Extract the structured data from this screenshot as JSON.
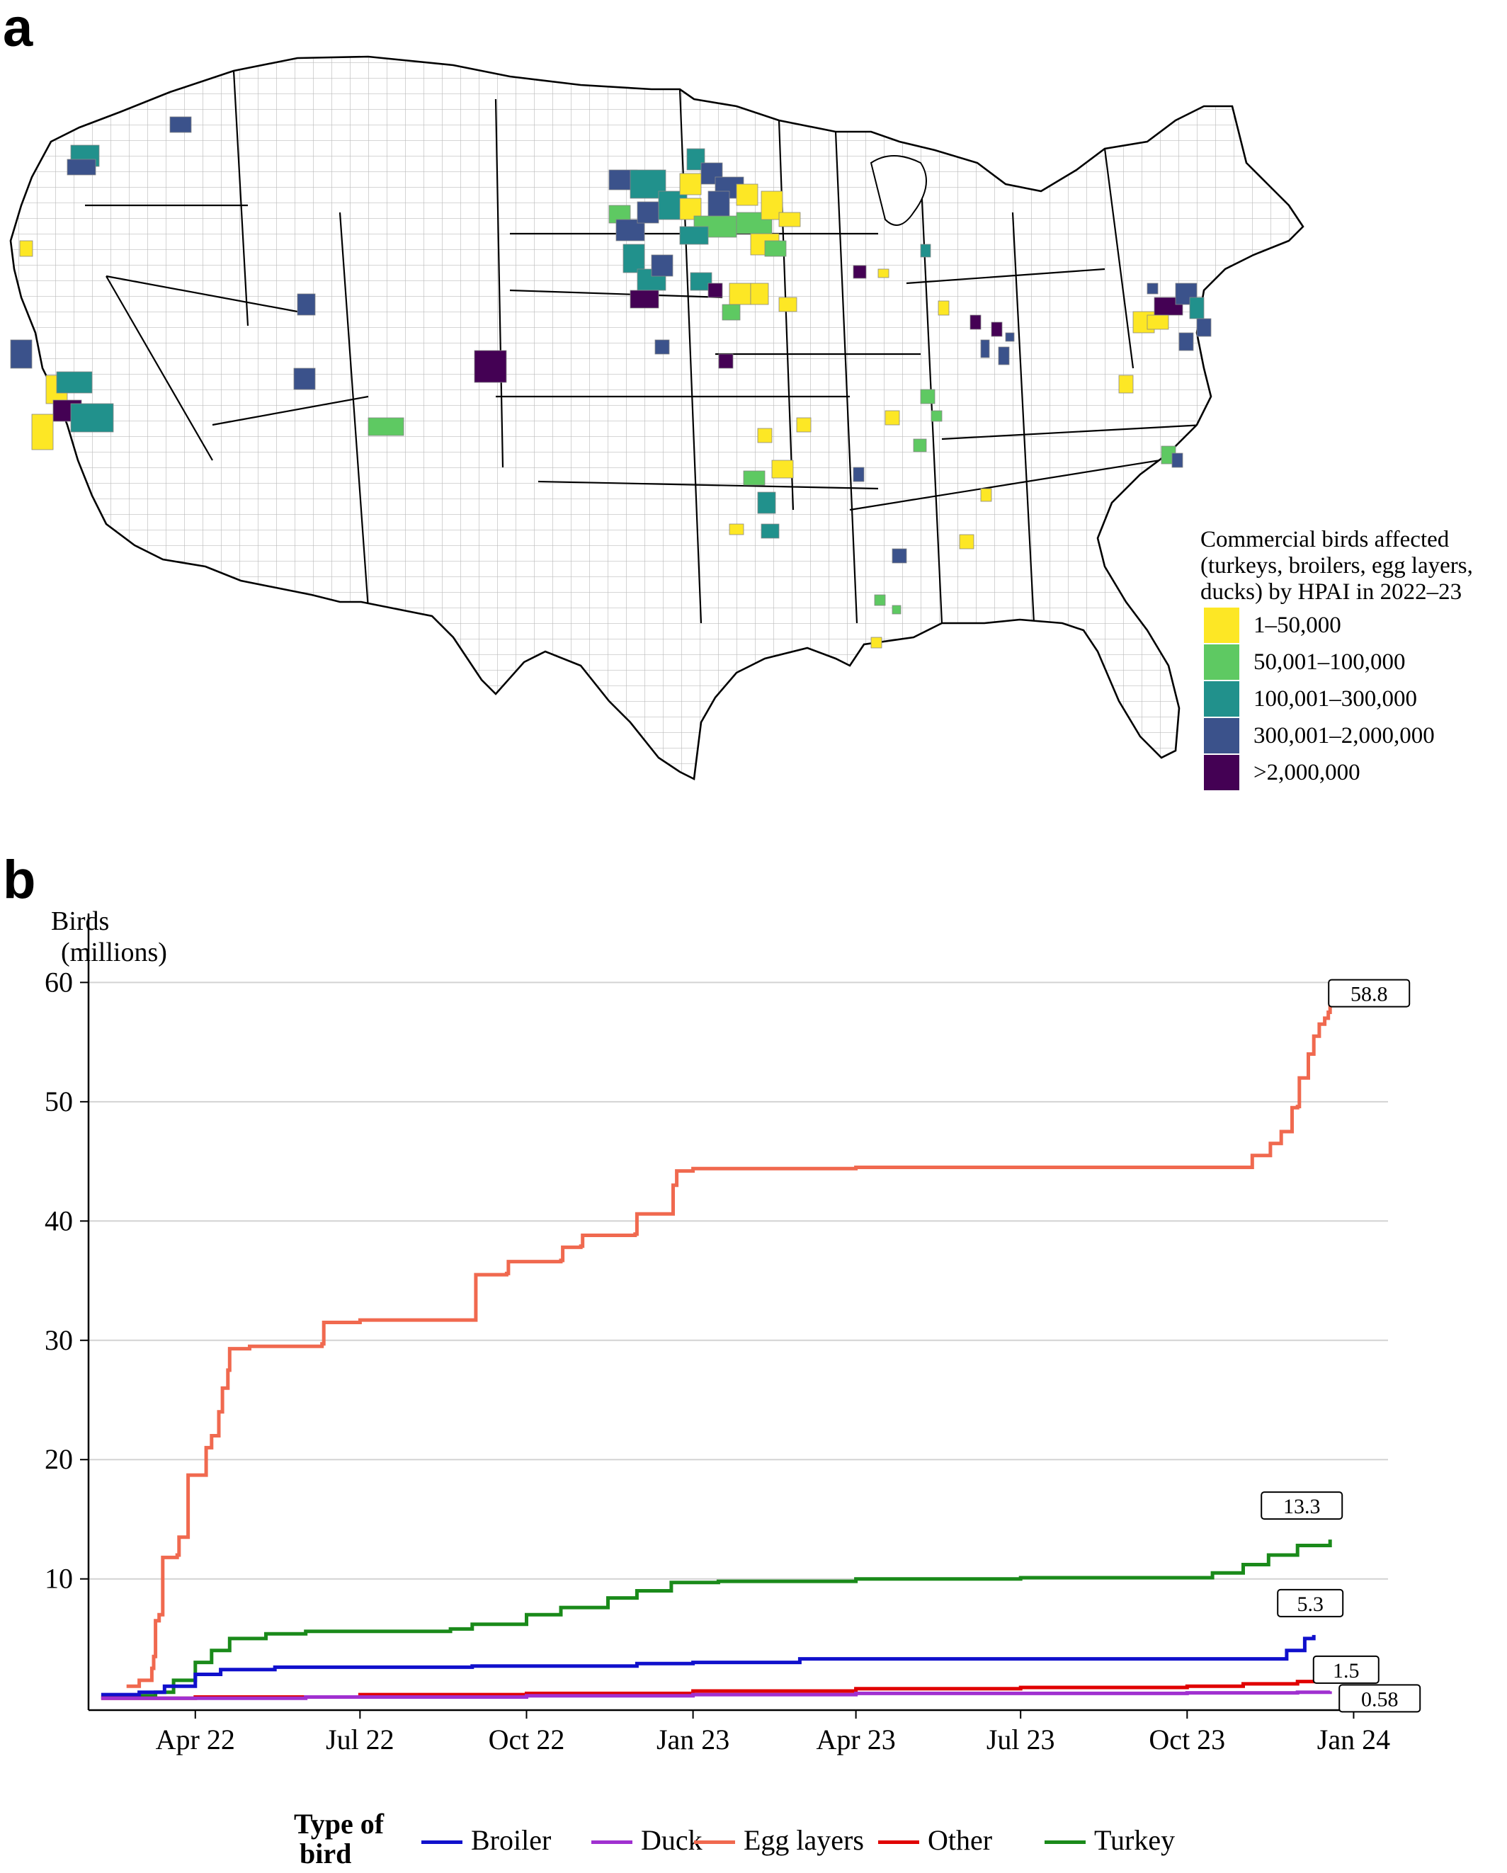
{
  "panel_labels": {
    "a": "a",
    "b": "b"
  },
  "map": {
    "legend_title": "Commercial birds affected (turkeys, broilers, egg layers, ducks) by HPAI in 2022–23",
    "legend": [
      {
        "label": "1–50,000",
        "color": "#fde725"
      },
      {
        "label": "50,001–100,000",
        "color": "#5ec962"
      },
      {
        "label": "100,001–300,000",
        "color": "#21918c"
      },
      {
        "label": "300,001–2,000,000",
        "color": "#3b528b"
      },
      {
        "label": ">2,000,000",
        "color": "#440154"
      }
    ],
    "outline_color": "#000000",
    "county_line_color": "#bdbdbd"
  },
  "chart_data": {
    "type": "line",
    "title": "",
    "ylabel_line1": "Birds",
    "ylabel_line2": "(millions)",
    "xlabel": "",
    "ylim": [
      -1,
      64
    ],
    "yticks": [
      10,
      20,
      30,
      40,
      50,
      60
    ],
    "grid": "horizontal",
    "x_range": [
      "2022-02-01",
      "2024-01-20"
    ],
    "x_ticks": [
      {
        "label": "Apr 22",
        "date": "2022-04-01"
      },
      {
        "label": "Jul 22",
        "date": "2022-07-01"
      },
      {
        "label": "Oct 22",
        "date": "2022-10-01"
      },
      {
        "label": "Jan 23",
        "date": "2023-01-01"
      },
      {
        "label": "Apr 23",
        "date": "2023-04-01"
      },
      {
        "label": "Jul 23",
        "date": "2023-07-01"
      },
      {
        "label": "Oct 23",
        "date": "2023-10-01"
      },
      {
        "label": "Jan 24",
        "date": "2024-01-01"
      }
    ],
    "legend_title": "Type of bird",
    "legend_position": "bottom",
    "series": [
      {
        "name": "Egg layers",
        "color": "#f0694f",
        "end_label": "58.8",
        "points": [
          [
            "2022-02-22",
            1.0
          ],
          [
            "2022-02-28",
            1.0
          ],
          [
            "2022-03-01",
            1.5
          ],
          [
            "2022-03-07",
            1.5
          ],
          [
            "2022-03-08",
            2.5
          ],
          [
            "2022-03-09",
            3.5
          ],
          [
            "2022-03-10",
            6.5
          ],
          [
            "2022-03-12",
            7.0
          ],
          [
            "2022-03-14",
            11.8
          ],
          [
            "2022-03-22",
            12.0
          ],
          [
            "2022-03-23",
            13.5
          ],
          [
            "2022-03-28",
            18.7
          ],
          [
            "2022-04-06",
            18.7
          ],
          [
            "2022-04-07",
            21.0
          ],
          [
            "2022-04-10",
            22.0
          ],
          [
            "2022-04-14",
            24.0
          ],
          [
            "2022-04-16",
            26.0
          ],
          [
            "2022-04-19",
            27.5
          ],
          [
            "2022-04-20",
            29.3
          ],
          [
            "2022-05-01",
            29.5
          ],
          [
            "2022-06-10",
            29.7
          ],
          [
            "2022-06-11",
            31.5
          ],
          [
            "2022-07-01",
            31.7
          ],
          [
            "2022-09-02",
            31.7
          ],
          [
            "2022-09-03",
            35.5
          ],
          [
            "2022-09-20",
            35.6
          ],
          [
            "2022-09-21",
            36.6
          ],
          [
            "2022-10-20",
            36.7
          ],
          [
            "2022-10-21",
            37.8
          ],
          [
            "2022-10-31",
            37.9
          ],
          [
            "2022-11-01",
            38.8
          ],
          [
            "2022-11-30",
            38.9
          ],
          [
            "2022-12-01",
            40.6
          ],
          [
            "2022-12-20",
            40.6
          ],
          [
            "2022-12-21",
            43.0
          ],
          [
            "2022-12-23",
            44.2
          ],
          [
            "2023-01-01",
            44.4
          ],
          [
            "2023-04-01",
            44.5
          ],
          [
            "2023-11-05",
            44.5
          ],
          [
            "2023-11-06",
            45.5
          ],
          [
            "2023-11-15",
            45.5
          ],
          [
            "2023-11-16",
            46.5
          ],
          [
            "2023-11-22",
            47.5
          ],
          [
            "2023-11-28",
            49.5
          ],
          [
            "2023-12-01",
            49.6
          ],
          [
            "2023-12-02",
            52.0
          ],
          [
            "2023-12-06",
            52.0
          ],
          [
            "2023-12-07",
            54.0
          ],
          [
            "2023-12-10",
            55.5
          ],
          [
            "2023-12-13",
            56.5
          ],
          [
            "2023-12-16",
            57.0
          ],
          [
            "2023-12-18",
            57.5
          ],
          [
            "2023-12-19",
            58.8
          ]
        ]
      },
      {
        "name": "Turkey",
        "color": "#1a8a1a",
        "end_label": "13.3",
        "points": [
          [
            "2022-02-08",
            0.1
          ],
          [
            "2022-03-01",
            0.2
          ],
          [
            "2022-03-10",
            0.5
          ],
          [
            "2022-03-20",
            1.5
          ],
          [
            "2022-04-01",
            3.0
          ],
          [
            "2022-04-10",
            4.0
          ],
          [
            "2022-04-20",
            5.0
          ],
          [
            "2022-05-10",
            5.4
          ],
          [
            "2022-06-01",
            5.6
          ],
          [
            "2022-08-20",
            5.8
          ],
          [
            "2022-09-01",
            6.2
          ],
          [
            "2022-10-01",
            7.0
          ],
          [
            "2022-10-20",
            7.6
          ],
          [
            "2022-11-15",
            8.4
          ],
          [
            "2022-12-01",
            9.0
          ],
          [
            "2022-12-20",
            9.7
          ],
          [
            "2023-01-15",
            9.8
          ],
          [
            "2023-04-01",
            10.0
          ],
          [
            "2023-07-01",
            10.1
          ],
          [
            "2023-10-01",
            10.1
          ],
          [
            "2023-10-15",
            10.5
          ],
          [
            "2023-11-01",
            11.2
          ],
          [
            "2023-11-15",
            12.0
          ],
          [
            "2023-12-01",
            12.8
          ],
          [
            "2023-12-19",
            13.3
          ]
        ]
      },
      {
        "name": "Broiler",
        "color": "#1010cc",
        "end_label": "5.3",
        "points": [
          [
            "2022-02-08",
            0.3
          ],
          [
            "2022-03-01",
            0.5
          ],
          [
            "2022-03-15",
            1.0
          ],
          [
            "2022-04-01",
            2.0
          ],
          [
            "2022-04-15",
            2.4
          ],
          [
            "2022-05-15",
            2.6
          ],
          [
            "2022-09-01",
            2.7
          ],
          [
            "2022-12-01",
            2.9
          ],
          [
            "2023-01-01",
            3.0
          ],
          [
            "2023-03-01",
            3.3
          ],
          [
            "2023-10-01",
            3.3
          ],
          [
            "2023-11-15",
            3.3
          ],
          [
            "2023-11-25",
            4.0
          ],
          [
            "2023-12-05",
            5.0
          ],
          [
            "2023-12-10",
            5.3
          ]
        ]
      },
      {
        "name": "Other",
        "color": "#e00000",
        "end_label": "1.5",
        "points": [
          [
            "2022-02-08",
            0.0
          ],
          [
            "2022-04-01",
            0.1
          ],
          [
            "2022-07-01",
            0.3
          ],
          [
            "2022-10-01",
            0.4
          ],
          [
            "2023-01-01",
            0.6
          ],
          [
            "2023-04-01",
            0.8
          ],
          [
            "2023-07-01",
            0.9
          ],
          [
            "2023-10-01",
            1.0
          ],
          [
            "2023-11-01",
            1.2
          ],
          [
            "2023-12-01",
            1.4
          ],
          [
            "2023-12-20",
            1.5
          ]
        ]
      },
      {
        "name": "Duck",
        "color": "#a030d0",
        "end_label": "0.58",
        "points": [
          [
            "2022-02-08",
            0.0
          ],
          [
            "2022-06-01",
            0.1
          ],
          [
            "2022-10-01",
            0.2
          ],
          [
            "2023-01-01",
            0.3
          ],
          [
            "2023-04-01",
            0.4
          ],
          [
            "2023-10-01",
            0.45
          ],
          [
            "2023-12-01",
            0.5
          ],
          [
            "2023-12-19",
            0.58
          ]
        ]
      }
    ]
  },
  "bottom_legend": {
    "title_line1": "Type of",
    "title_line2": "bird",
    "order": [
      "Broiler",
      "Duck",
      "Egg layers",
      "Other",
      "Turkey"
    ]
  }
}
